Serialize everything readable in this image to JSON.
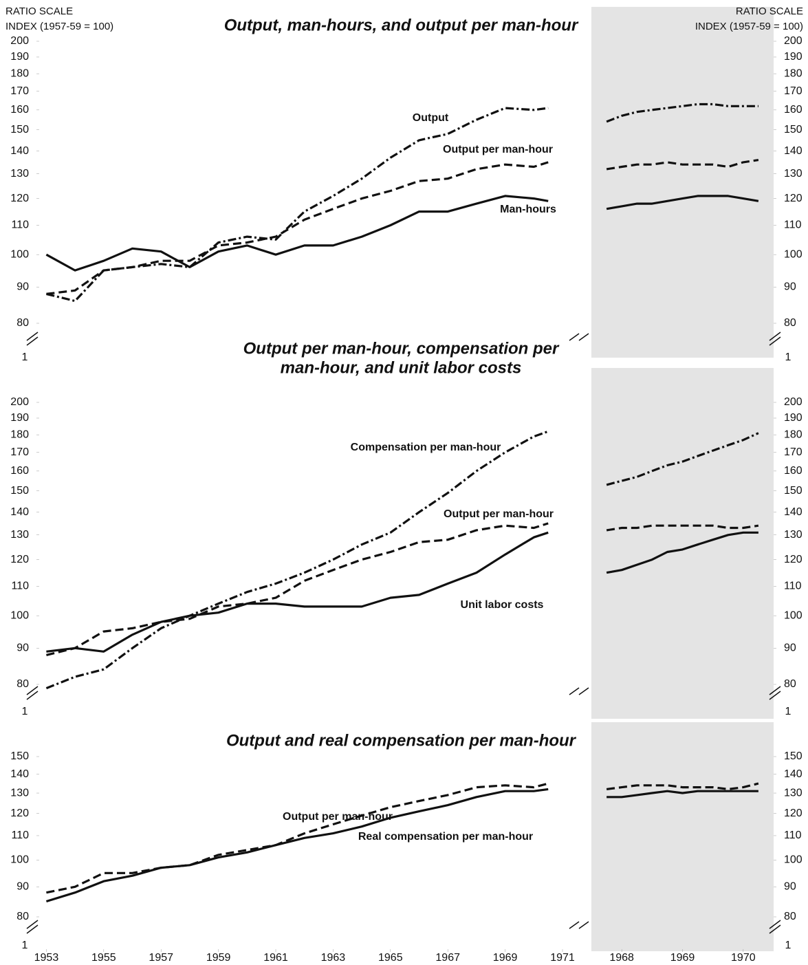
{
  "chart_data": [
    {
      "type": "line",
      "log": true,
      "title": [
        "Output, man-hours, and output per man-hour"
      ],
      "y_axis_label": [
        "RATIO SCALE",
        "INDEX (1957-59 = 100)"
      ],
      "axis_break_label": "1",
      "xlim": [
        1952.75,
        1971
      ],
      "ylim": [
        80,
        200
      ],
      "yticks": [
        80,
        90,
        100,
        110,
        120,
        130,
        140,
        150,
        160,
        170,
        180,
        190,
        200
      ],
      "x": [
        1953,
        1954,
        1955,
        1956,
        1957,
        1958,
        1959,
        1960,
        1961,
        1962,
        1963,
        1964,
        1965,
        1966,
        1967,
        1968,
        1969,
        1970,
        1970.5
      ],
      "series": [
        {
          "name": "Output",
          "color": "#111111",
          "dash": "dashdot",
          "values": [
            88,
            86,
            95,
            96,
            97,
            96,
            104,
            106,
            105,
            115,
            121,
            128,
            137,
            145,
            148,
            155,
            161,
            160,
            161
          ]
        },
        {
          "name": "Output per man-hour",
          "color": "#111111",
          "dash": "dashed",
          "values": [
            88,
            89,
            95,
            96,
            98,
            98,
            103,
            104,
            106,
            112,
            116,
            120,
            123,
            127,
            128,
            132,
            134,
            133,
            135
          ]
        },
        {
          "name": "Man-hours",
          "color": "#111111",
          "dash": "solid",
          "values": [
            100,
            95,
            98,
            102,
            101,
            96,
            101,
            103,
            100,
            103,
            103,
            106,
            110,
            115,
            115,
            118,
            121,
            120,
            119
          ]
        }
      ]
    },
    {
      "type": "line",
      "log": true,
      "background": "#e4e4e4",
      "y_axis_label": [
        "RATIO SCALE",
        "INDEX (1957-59 = 100)"
      ],
      "axis_break_label": "1",
      "xlim": [
        1967.5,
        1970.5
      ],
      "ylim": [
        80,
        200
      ],
      "yticks": [
        80,
        90,
        100,
        110,
        120,
        130,
        140,
        150,
        160,
        170,
        180,
        190,
        200
      ],
      "x": [
        1967.75,
        1968,
        1968.25,
        1968.5,
        1968.75,
        1969,
        1969.25,
        1969.5,
        1969.75,
        1970,
        1970.25
      ],
      "series": [
        {
          "color": "#111111",
          "dash": "dashdot",
          "values": [
            154,
            157,
            159,
            160,
            161,
            162,
            163,
            163,
            162,
            162,
            162
          ]
        },
        {
          "color": "#111111",
          "dash": "dashed",
          "values": [
            132,
            133,
            134,
            134,
            135,
            134,
            134,
            134,
            133,
            135,
            136
          ]
        },
        {
          "color": "#111111",
          "dash": "solid",
          "values": [
            116,
            117,
            118,
            118,
            119,
            120,
            121,
            121,
            121,
            120,
            119
          ]
        }
      ]
    },
    {
      "type": "line",
      "log": true,
      "title": [
        "Output per man-hour, compensation per",
        "man-hour,  and unit labor costs"
      ],
      "axis_break_label": "1",
      "xlim": [
        1952.75,
        1971
      ],
      "ylim": [
        80,
        200
      ],
      "yticks": [
        80,
        90,
        100,
        110,
        120,
        130,
        140,
        150,
        160,
        170,
        180,
        190,
        200
      ],
      "x": [
        1953,
        1954,
        1955,
        1956,
        1957,
        1958,
        1959,
        1960,
        1961,
        1962,
        1963,
        1964,
        1965,
        1966,
        1967,
        1968,
        1969,
        1970,
        1970.5
      ],
      "series": [
        {
          "name": "Compensation per man-hour",
          "color": "#111111",
          "dash": "dashdot",
          "values": [
            79,
            82,
            84,
            90,
            96,
            100,
            104,
            108,
            111,
            115,
            120,
            126,
            131,
            140,
            149,
            160,
            170,
            179,
            182
          ]
        },
        {
          "name": "Output per man-hour",
          "color": "#111111",
          "dash": "dashed",
          "values": [
            88,
            90,
            95,
            96,
            98,
            99,
            103,
            104,
            106,
            112,
            116,
            120,
            123,
            127,
            128,
            132,
            134,
            133,
            135
          ]
        },
        {
          "name": "Unit labor costs",
          "color": "#111111",
          "dash": "solid",
          "values": [
            89,
            90,
            89,
            94,
            98,
            100,
            101,
            104,
            104,
            103,
            103,
            103,
            106,
            107,
            111,
            115,
            122,
            129,
            131
          ]
        }
      ]
    },
    {
      "type": "line",
      "log": true,
      "background": "#e4e4e4",
      "axis_break_label": "1",
      "xlim": [
        1967.5,
        1970.5
      ],
      "ylim": [
        80,
        200
      ],
      "yticks": [
        80,
        90,
        100,
        110,
        120,
        130,
        140,
        150,
        160,
        170,
        180,
        190,
        200
      ],
      "x": [
        1967.75,
        1968,
        1968.25,
        1968.5,
        1968.75,
        1969,
        1969.25,
        1969.5,
        1969.75,
        1970,
        1970.25
      ],
      "series": [
        {
          "color": "#111111",
          "dash": "dashdot",
          "values": [
            153,
            155,
            157,
            160,
            163,
            165,
            168,
            171,
            174,
            177,
            181
          ]
        },
        {
          "color": "#111111",
          "dash": "dashed",
          "values": [
            132,
            133,
            133,
            134,
            134,
            134,
            134,
            134,
            133,
            133,
            134
          ]
        },
        {
          "color": "#111111",
          "dash": "solid",
          "values": [
            115,
            116,
            118,
            120,
            123,
            124,
            126,
            128,
            130,
            131,
            131
          ]
        }
      ]
    },
    {
      "type": "line",
      "log": true,
      "title": [
        "Output and real compensation per man-hour"
      ],
      "axis_break_label": "1",
      "xlim": [
        1952.75,
        1971
      ],
      "ylim": [
        80,
        150
      ],
      "yticks": [
        80,
        90,
        100,
        110,
        120,
        130,
        140,
        150
      ],
      "xticks": [
        1953,
        1955,
        1957,
        1959,
        1961,
        1963,
        1965,
        1967,
        1969,
        1971
      ],
      "x": [
        1953,
        1954,
        1955,
        1956,
        1957,
        1958,
        1959,
        1960,
        1961,
        1962,
        1963,
        1964,
        1965,
        1966,
        1967,
        1968,
        1969,
        1970,
        1970.5
      ],
      "series": [
        {
          "name": "Output per man-hour",
          "color": "#111111",
          "dash": "dashed",
          "values": [
            88,
            90,
            95,
            95,
            97,
            98,
            102,
            104,
            106,
            111,
            115,
            119,
            123,
            126,
            129,
            133,
            134,
            133,
            135
          ]
        },
        {
          "name": "Real compensation per man-hour",
          "color": "#111111",
          "dash": "solid",
          "values": [
            85,
            88,
            92,
            94,
            97,
            98,
            101,
            103,
            106,
            109,
            111,
            114,
            118,
            121,
            124,
            128,
            131,
            131,
            132
          ]
        }
      ]
    },
    {
      "type": "line",
      "log": true,
      "background": "#e4e4e4",
      "axis_break_label": "1",
      "xlim": [
        1967.5,
        1970.5
      ],
      "ylim": [
        80,
        150
      ],
      "yticks": [
        80,
        90,
        100,
        110,
        120,
        130,
        140,
        150
      ],
      "xticks": [
        1968,
        1969,
        1970
      ],
      "x": [
        1967.75,
        1968,
        1968.25,
        1968.5,
        1968.75,
        1969,
        1969.25,
        1969.5,
        1969.75,
        1970,
        1970.25
      ],
      "series": [
        {
          "color": "#111111",
          "dash": "dashed",
          "values": [
            132,
            133,
            134,
            134,
            134,
            133,
            133,
            133,
            132,
            133,
            135
          ]
        },
        {
          "color": "#111111",
          "dash": "solid",
          "values": [
            128,
            128,
            129,
            130,
            131,
            130,
            131,
            131,
            131,
            131,
            131
          ]
        }
      ]
    }
  ]
}
